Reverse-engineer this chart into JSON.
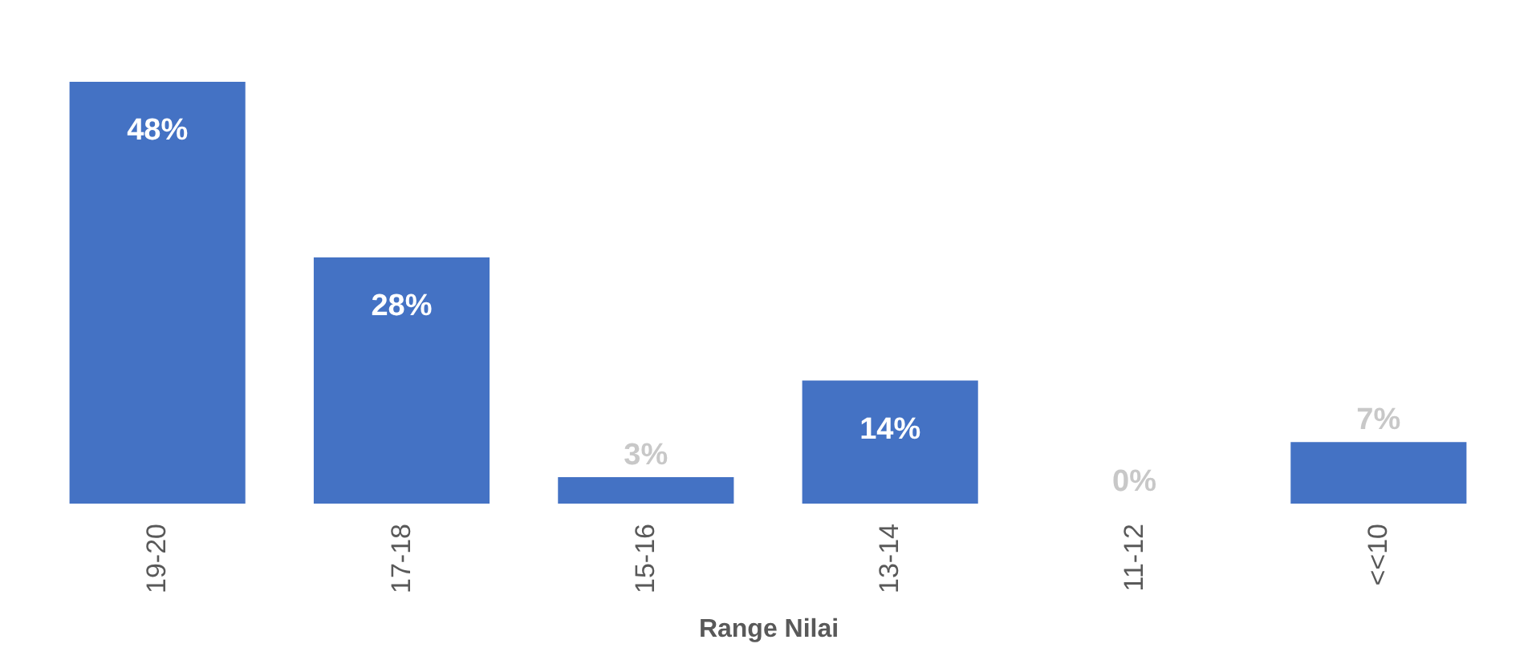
{
  "chart_data": {
    "type": "bar",
    "xlabel": "Range Nilai",
    "categories": [
      "19-20",
      "17-18",
      "15-16",
      "13-14",
      "11-12",
      "<<10"
    ],
    "values": [
      48,
      28,
      3,
      14,
      0,
      7
    ],
    "value_labels": [
      "48%",
      "28%",
      "3%",
      "14%",
      "0%",
      "7%"
    ],
    "color": "#4472c4"
  }
}
